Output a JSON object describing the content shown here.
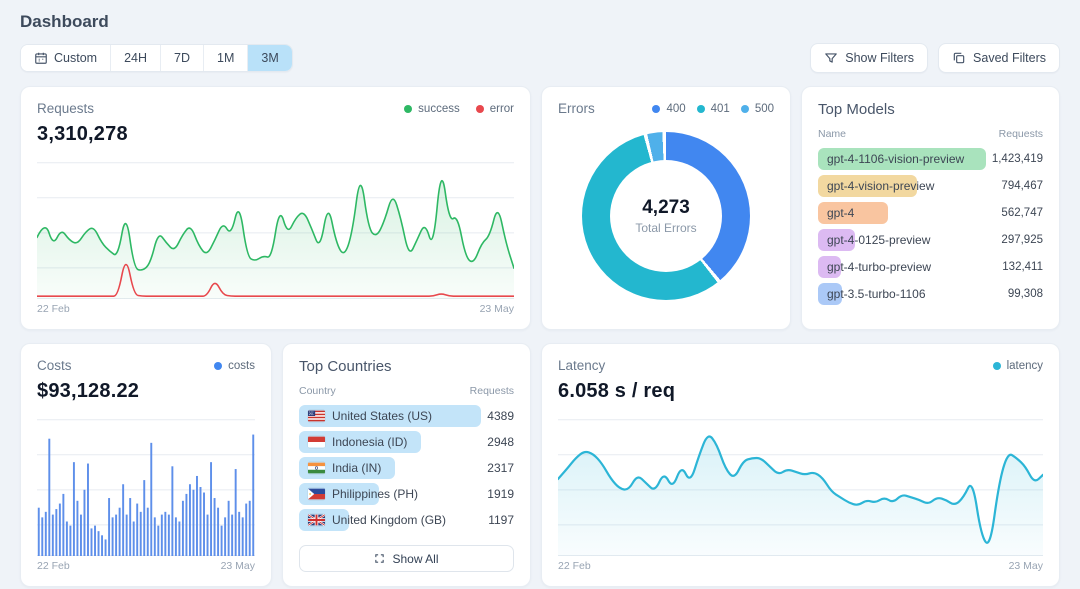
{
  "page": {
    "title": "Dashboard"
  },
  "toolbar": {
    "time_ranges": [
      {
        "label": "Custom",
        "icon": "calendar-icon",
        "selected": false
      },
      {
        "label": "24H",
        "selected": false
      },
      {
        "label": "7D",
        "selected": false
      },
      {
        "label": "1M",
        "selected": false
      },
      {
        "label": "3M",
        "selected": true
      }
    ],
    "show_filters_label": "Show Filters",
    "saved_filters_label": "Saved Filters",
    "selected_bg": "#b9e1f9"
  },
  "cards": {
    "requests": {
      "title": "Requests",
      "value": "3,310,278",
      "legend": [
        {
          "label": "success",
          "color": "#2eb864"
        },
        {
          "label": "error",
          "color": "#e8484d"
        }
      ],
      "x_start": "22 Feb",
      "x_end": "23 May"
    },
    "errors": {
      "title": "Errors",
      "legend": [
        {
          "label": "400",
          "color": "#4187f0"
        },
        {
          "label": "401",
          "color": "#23b7cf"
        },
        {
          "label": "500",
          "color": "#4fb0ea"
        }
      ],
      "total_value": "4,273",
      "total_label": "Total Errors"
    },
    "top_models": {
      "title": "Top Models",
      "columns": {
        "name": "Name",
        "requests": "Requests"
      },
      "rows": [
        {
          "name": "gpt-4-1106-vision-preview",
          "requests": "1,423,419",
          "value": 1423419,
          "color": "#a9e3bd"
        },
        {
          "name": "gpt-4-vision-preview",
          "requests": "794,467",
          "value": 794467,
          "color": "#f2d8a0"
        },
        {
          "name": "gpt-4",
          "requests": "562,747",
          "value": 562747,
          "color": "#f9c5a0"
        },
        {
          "name": "gpt-4-0125-preview",
          "requests": "297,925",
          "value": 297925,
          "color": "#dcbaf2"
        },
        {
          "name": "gpt-4-turbo-preview",
          "requests": "132,411",
          "value": 132411,
          "color": "#dcbaf2"
        },
        {
          "name": "gpt-3.5-turbo-1106",
          "requests": "99,308",
          "value": 99308,
          "color": "#abc9f7"
        }
      ]
    },
    "costs": {
      "title": "Costs",
      "value": "$93,128.22",
      "legend": [
        {
          "label": "costs",
          "color": "#4187f0"
        }
      ],
      "x_start": "22 Feb",
      "x_end": "23 May"
    },
    "top_countries": {
      "title": "Top Countries",
      "columns": {
        "name": "Country",
        "requests": "Requests"
      },
      "pill_color": "#c3e4f9",
      "rows": [
        {
          "name": "United States (US)",
          "code": "US",
          "requests": "4389",
          "value": 4389
        },
        {
          "name": "Indonesia (ID)",
          "code": "ID",
          "requests": "2948",
          "value": 2948
        },
        {
          "name": "India (IN)",
          "code": "IN",
          "requests": "2317",
          "value": 2317
        },
        {
          "name": "Philippines (PH)",
          "code": "PH",
          "requests": "1919",
          "value": 1919
        },
        {
          "name": "United Kingdom (GB)",
          "code": "GB",
          "requests": "1197",
          "value": 1197
        }
      ],
      "show_all_label": "Show All"
    },
    "latency": {
      "title": "Latency",
      "value": "6.058 s / req",
      "legend": [
        {
          "label": "latency",
          "color": "#2cb5d6"
        }
      ],
      "x_start": "22 Feb",
      "x_end": "23 May"
    }
  },
  "chart_data": [
    {
      "id": "requests",
      "type": "line",
      "title": "Requests",
      "x_range": [
        "22 Feb",
        "23 May"
      ],
      "ylim": [
        0,
        100
      ],
      "grid": true,
      "legend_position": "top-right",
      "note": "y-axis unlabeled; values are relative request volume",
      "series": [
        {
          "name": "success",
          "color": "#2eb864",
          "fill": true,
          "values": [
            44,
            56,
            38,
            50,
            42,
            39,
            48,
            52,
            40,
            34,
            30,
            63,
            22,
            20,
            25,
            48,
            40,
            34,
            46,
            53,
            38,
            31,
            42,
            55,
            45,
            70,
            30,
            27,
            31,
            29,
            66,
            46,
            58,
            63,
            50,
            35,
            69,
            40,
            30,
            47,
            92,
            50,
            44,
            56,
            76,
            58,
            30,
            42,
            55,
            35,
            97,
            55,
            60,
            30,
            25,
            40,
            45,
            68,
            40,
            22
          ]
        },
        {
          "name": "error",
          "color": "#e8484d",
          "fill": false,
          "values": [
            2,
            2,
            2,
            2,
            2,
            2,
            2,
            2,
            2,
            2,
            2,
            32,
            3,
            2,
            2,
            2,
            2,
            2,
            2,
            2,
            2,
            2,
            14,
            3,
            2,
            2,
            2,
            2,
            2,
            2,
            2,
            2,
            2,
            2,
            2,
            2,
            2,
            2,
            2,
            2,
            2,
            2,
            2,
            2,
            2,
            2,
            2,
            2,
            2,
            2,
            4,
            2,
            2,
            2,
            2,
            2,
            2,
            2,
            2,
            2
          ]
        }
      ]
    },
    {
      "id": "errors",
      "type": "donut",
      "title": "Errors",
      "total": 4273,
      "center_label": "Total Errors",
      "slices": [
        {
          "label": "400",
          "percent": 39.5,
          "approx_count": 1688,
          "color": "#4187f0"
        },
        {
          "label": "401",
          "percent": 56.9,
          "approx_count": 2432,
          "color": "#23b7cf"
        },
        {
          "label": "500",
          "percent": 3.6,
          "approx_count": 153,
          "color": "#4fb0ea"
        }
      ]
    },
    {
      "id": "costs",
      "type": "bar",
      "title": "Costs",
      "x_range": [
        "22 Feb",
        "23 May"
      ],
      "ylim": [
        0,
        100
      ],
      "grid": true,
      "color": "#5e8fea",
      "note": "y-axis unlabeled; values are relative daily cost",
      "values": [
        35,
        28,
        32,
        85,
        30,
        34,
        38,
        45,
        25,
        22,
        68,
        40,
        30,
        48,
        67,
        20,
        22,
        18,
        15,
        12,
        42,
        28,
        30,
        35,
        52,
        30,
        42,
        25,
        38,
        32,
        55,
        35,
        82,
        28,
        22,
        30,
        32,
        30,
        65,
        28,
        25,
        40,
        45,
        52,
        48,
        58,
        50,
        46,
        30,
        68,
        42,
        35,
        22,
        28,
        40,
        30,
        63,
        32,
        28,
        38,
        40,
        88
      ]
    },
    {
      "id": "latency",
      "type": "area",
      "title": "Latency",
      "x_range": [
        "22 Feb",
        "23 May"
      ],
      "ylim": [
        0,
        100
      ],
      "grid": true,
      "color": "#2cb5d6",
      "note": "y-axis unlabeled; values are relative latency",
      "values": [
        55,
        62,
        70,
        75,
        73,
        66,
        55,
        48,
        47,
        58,
        52,
        46,
        60,
        48,
        65,
        52,
        72,
        88,
        80,
        62,
        55,
        68,
        70,
        70,
        64,
        58,
        62,
        60,
        58,
        60,
        56,
        46,
        42,
        38,
        36,
        40,
        38,
        42,
        38,
        44,
        42,
        40,
        37,
        42,
        40,
        36,
        42,
        55,
        14,
        6,
        52,
        74,
        70,
        64,
        52,
        58
      ]
    }
  ]
}
